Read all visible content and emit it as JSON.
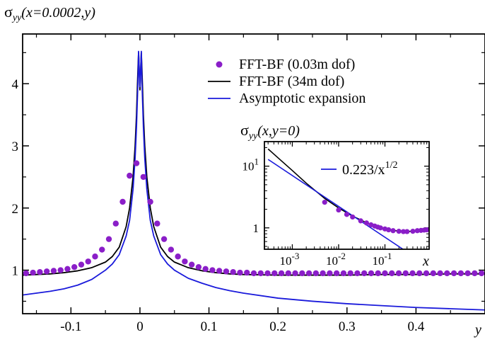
{
  "chart_data": [
    {
      "type": "line",
      "title": "",
      "ylabel_main": "σ",
      "ylabel_sub": "yy",
      "ylabel_args": "(x=0.0002,y)",
      "xlabel": "y",
      "xlim": [
        -0.17,
        0.5
      ],
      "ylim": [
        0.3,
        4.8
      ],
      "xticks": [
        -0.1,
        0,
        0.1,
        0.2,
        0.3,
        0.4
      ],
      "xtick_labels": [
        "-0.1",
        "0",
        "0.1",
        "0.2",
        "0.3",
        "0.4"
      ],
      "yticks": [
        1,
        2,
        3,
        4
      ],
      "ytick_labels": [
        "1",
        "2",
        "3",
        "4"
      ],
      "grid": false,
      "legend_position": "top-right",
      "series": [
        {
          "name": "FFT-BF (0.03m dof)",
          "style": "markers",
          "color": "#8a1ec8",
          "x": [
            -0.165,
            -0.155,
            -0.145,
            -0.135,
            -0.125,
            -0.115,
            -0.105,
            -0.095,
            -0.085,
            -0.075,
            -0.065,
            -0.055,
            -0.045,
            -0.035,
            -0.025,
            -0.015,
            -0.005,
            0.005,
            0.015,
            0.025,
            0.035,
            0.045,
            0.055,
            0.065,
            0.075,
            0.085,
            0.095,
            0.105,
            0.115,
            0.125,
            0.135,
            0.145,
            0.155,
            0.165,
            0.175,
            0.185,
            0.195,
            0.205,
            0.215,
            0.225,
            0.235,
            0.245,
            0.255,
            0.265,
            0.275,
            0.285,
            0.295,
            0.305,
            0.315,
            0.325,
            0.335,
            0.345,
            0.355,
            0.365,
            0.375,
            0.385,
            0.395,
            0.405,
            0.415,
            0.425,
            0.435,
            0.445,
            0.455,
            0.465,
            0.475,
            0.485,
            0.495
          ],
          "y": [
            0.95,
            0.96,
            0.97,
            0.98,
            0.99,
            1.0,
            1.02,
            1.05,
            1.09,
            1.14,
            1.22,
            1.33,
            1.5,
            1.75,
            2.1,
            2.52,
            2.72,
            2.5,
            2.1,
            1.75,
            1.5,
            1.33,
            1.22,
            1.14,
            1.09,
            1.05,
            1.02,
            1.0,
            0.99,
            0.98,
            0.97,
            0.96,
            0.96,
            0.95,
            0.95,
            0.95,
            0.95,
            0.95,
            0.95,
            0.95,
            0.95,
            0.95,
            0.95,
            0.95,
            0.95,
            0.95,
            0.95,
            0.95,
            0.95,
            0.95,
            0.95,
            0.95,
            0.95,
            0.95,
            0.95,
            0.95,
            0.95,
            0.95,
            0.95,
            0.95,
            0.95,
            0.95,
            0.95,
            0.95,
            0.95,
            0.95,
            0.95
          ]
        },
        {
          "name": "FFT-BF (34m dof)",
          "style": "line",
          "color": "#000000",
          "x": [
            -0.17,
            -0.15,
            -0.13,
            -0.11,
            -0.09,
            -0.07,
            -0.05,
            -0.04,
            -0.03,
            -0.02,
            -0.015,
            -0.01,
            -0.007,
            -0.005,
            -0.003,
            -0.002,
            -0.001,
            0,
            0.001,
            0.002,
            0.003,
            0.005,
            0.007,
            0.01,
            0.015,
            0.02,
            0.03,
            0.04,
            0.05,
            0.07,
            0.09,
            0.11,
            0.13,
            0.15,
            0.2,
            0.25,
            0.3,
            0.35,
            0.4,
            0.45,
            0.5
          ],
          "y": [
            0.92,
            0.93,
            0.94,
            0.96,
            0.99,
            1.04,
            1.13,
            1.22,
            1.37,
            1.7,
            2.0,
            2.5,
            3.0,
            3.5,
            4.2,
            4.5,
            4.2,
            3.9,
            4.2,
            4.5,
            4.2,
            3.5,
            3.0,
            2.5,
            2.0,
            1.7,
            1.37,
            1.22,
            1.13,
            1.04,
            0.99,
            0.96,
            0.94,
            0.93,
            0.92,
            0.92,
            0.92,
            0.93,
            0.93,
            0.94,
            0.94
          ]
        },
        {
          "name": "Asymptotic expansion",
          "style": "line",
          "color": "#1a1adb",
          "x": [
            -0.17,
            -0.15,
            -0.13,
            -0.11,
            -0.09,
            -0.07,
            -0.05,
            -0.04,
            -0.03,
            -0.02,
            -0.015,
            -0.01,
            -0.007,
            -0.005,
            -0.003,
            -0.002,
            -0.001,
            0,
            0.001,
            0.002,
            0.003,
            0.005,
            0.007,
            0.01,
            0.015,
            0.02,
            0.03,
            0.04,
            0.05,
            0.07,
            0.09,
            0.11,
            0.13,
            0.15,
            0.2,
            0.25,
            0.3,
            0.35,
            0.4,
            0.45,
            0.5
          ],
          "y": [
            0.6,
            0.63,
            0.66,
            0.7,
            0.76,
            0.85,
            1.0,
            1.1,
            1.25,
            1.55,
            1.8,
            2.3,
            2.8,
            3.3,
            4.0,
            4.52,
            4.2,
            3.95,
            4.2,
            4.52,
            4.0,
            3.3,
            2.8,
            2.3,
            1.8,
            1.55,
            1.25,
            1.1,
            1.0,
            0.87,
            0.79,
            0.72,
            0.67,
            0.63,
            0.55,
            0.5,
            0.46,
            0.43,
            0.4,
            0.38,
            0.36
          ]
        }
      ]
    },
    {
      "type": "line",
      "position": "inset",
      "title_main": "σ",
      "title_sub": "yy",
      "title_args": "(x,y=0)",
      "xlabel": "x",
      "xscale": "log",
      "yscale": "log",
      "xlim": [
        0.00025,
        0.9
      ],
      "ylim": [
        0.45,
        25
      ],
      "xticks": [
        0.001,
        0.01,
        0.1
      ],
      "xtick_base": [
        "10",
        "10",
        "10"
      ],
      "xtick_exp": [
        "-3",
        "-2",
        "-1"
      ],
      "yticks": [
        1,
        10
      ],
      "ytick_base": [
        "1",
        "10"
      ],
      "ytick_exp": [
        "",
        "1"
      ],
      "legend_position": "top-right",
      "legend_text": "0.223/x",
      "legend_exp": "1/2",
      "series": [
        {
          "name": "FFT-BF (0.03m dof)",
          "style": "markers",
          "color": "#8a1ec8",
          "x": [
            0.005,
            0.01,
            0.015,
            0.02,
            0.03,
            0.04,
            0.05,
            0.06,
            0.07,
            0.08,
            0.1,
            0.12,
            0.15,
            0.2,
            0.25,
            0.3,
            0.4,
            0.5,
            0.6,
            0.7,
            0.8
          ],
          "y": [
            2.6,
            1.95,
            1.65,
            1.5,
            1.3,
            1.2,
            1.12,
            1.07,
            1.03,
            1.0,
            0.96,
            0.93,
            0.9,
            0.88,
            0.87,
            0.87,
            0.88,
            0.9,
            0.91,
            0.92,
            0.93
          ]
        },
        {
          "name": "FFT-BF (34m dof)",
          "style": "line",
          "color": "#000000",
          "x": [
            0.0003,
            0.0005,
            0.001,
            0.002,
            0.005,
            0.01,
            0.02,
            0.05,
            0.1,
            0.2,
            0.3,
            0.5,
            0.8
          ],
          "y": [
            19.0,
            13.5,
            8.5,
            5.3,
            3.0,
            2.1,
            1.55,
            1.12,
            0.97,
            0.88,
            0.87,
            0.9,
            0.93
          ]
        },
        {
          "name": "0.223/x^{1/2}",
          "style": "line",
          "color": "#1a1adb",
          "x": [
            0.0003,
            0.8
          ],
          "y": [
            12.87,
            0.249
          ]
        }
      ]
    }
  ],
  "legend": {
    "entries": [
      {
        "label": "FFT-BF (0.03m dof)",
        "marker": "dot",
        "color": "#8a1ec8"
      },
      {
        "label": "FFT-BF (34m dof)",
        "marker": "line",
        "color": "#000000"
      },
      {
        "label": "Asymptotic expansion",
        "marker": "line",
        "color": "#1a1adb"
      }
    ]
  }
}
